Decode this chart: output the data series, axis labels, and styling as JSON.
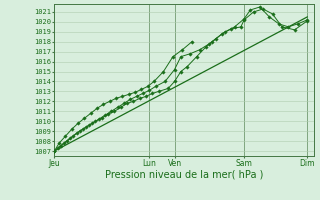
{
  "bg_color": "#d8eedd",
  "grid_color": "#b0ccb0",
  "line_color": "#1a6e1a",
  "marker_color": "#1a6e1a",
  "ylabel_values": [
    1007,
    1008,
    1009,
    1010,
    1011,
    1012,
    1013,
    1014,
    1015,
    1016,
    1017,
    1018,
    1019,
    1020,
    1021
  ],
  "ylim": [
    1006.5,
    1021.8
  ],
  "xlim": [
    0,
    8.2
  ],
  "xlabel": "Pression niveau de la mer( hPa )",
  "xlabel_fontsize": 7,
  "day_labels": [
    "Jeu",
    "",
    "Lun",
    "Ven",
    "",
    "Sam",
    "",
    "Dim"
  ],
  "day_positions": [
    0.0,
    1.5,
    3.0,
    3.8,
    5.0,
    6.0,
    7.0,
    8.0
  ],
  "vline_positions": [
    0.0,
    3.0,
    3.8,
    6.0,
    8.0
  ],
  "line1_x": [
    0,
    0.1,
    0.3,
    0.5,
    0.7,
    0.9,
    1.1,
    1.3,
    1.5,
    1.7,
    1.9,
    2.1,
    2.3,
    2.5,
    2.7,
    2.9,
    3.1,
    3.3,
    3.6,
    3.8,
    4.0,
    4.2,
    4.5,
    4.8,
    5.0,
    5.3,
    5.6,
    5.9,
    6.0,
    6.3,
    6.6,
    6.9,
    7.2,
    7.6,
    8.0
  ],
  "line1_y": [
    1007.0,
    1007.3,
    1007.8,
    1008.3,
    1008.8,
    1009.2,
    1009.6,
    1010.0,
    1010.3,
    1010.7,
    1011.0,
    1011.4,
    1011.8,
    1012.0,
    1012.3,
    1012.5,
    1012.8,
    1013.0,
    1013.3,
    1014.0,
    1015.0,
    1015.5,
    1016.5,
    1017.5,
    1018.0,
    1018.8,
    1019.3,
    1019.5,
    1020.2,
    1021.0,
    1021.3,
    1020.8,
    1019.5,
    1019.2,
    1020.1
  ],
  "line2_x": [
    0,
    0.2,
    0.4,
    0.6,
    0.8,
    1.0,
    1.2,
    1.4,
    1.6,
    1.8,
    2.0,
    2.2,
    2.4,
    2.6,
    2.8,
    3.0,
    3.2,
    3.5,
    3.8,
    4.0,
    4.3,
    4.6,
    4.9,
    5.1,
    5.4,
    5.7,
    6.0,
    6.2,
    6.5,
    6.8,
    7.1,
    7.4,
    7.7,
    8.0
  ],
  "line2_y": [
    1007.0,
    1007.5,
    1008.0,
    1008.5,
    1009.0,
    1009.4,
    1009.8,
    1010.2,
    1010.6,
    1011.0,
    1011.4,
    1011.8,
    1012.2,
    1012.5,
    1012.8,
    1013.1,
    1013.5,
    1014.0,
    1015.2,
    1016.5,
    1016.8,
    1017.2,
    1017.8,
    1018.3,
    1019.0,
    1019.5,
    1020.3,
    1021.2,
    1021.5,
    1020.5,
    1019.8,
    1019.5,
    1019.8,
    1020.2
  ],
  "line3_x": [
    0,
    0.15,
    0.35,
    0.55,
    0.75,
    0.95,
    1.15,
    1.35,
    1.55,
    1.75,
    1.95,
    2.15,
    2.35,
    2.55,
    2.75,
    2.95,
    3.15,
    3.45,
    3.75,
    4.05,
    4.35
  ],
  "line3_y": [
    1007.0,
    1007.8,
    1008.5,
    1009.2,
    1009.8,
    1010.3,
    1010.8,
    1011.3,
    1011.7,
    1012.0,
    1012.3,
    1012.5,
    1012.7,
    1012.9,
    1013.2,
    1013.5,
    1014.0,
    1015.0,
    1016.5,
    1017.2,
    1018.0
  ],
  "trend_x": [
    0,
    8.0
  ],
  "trend_y": [
    1007.0,
    1020.5
  ]
}
